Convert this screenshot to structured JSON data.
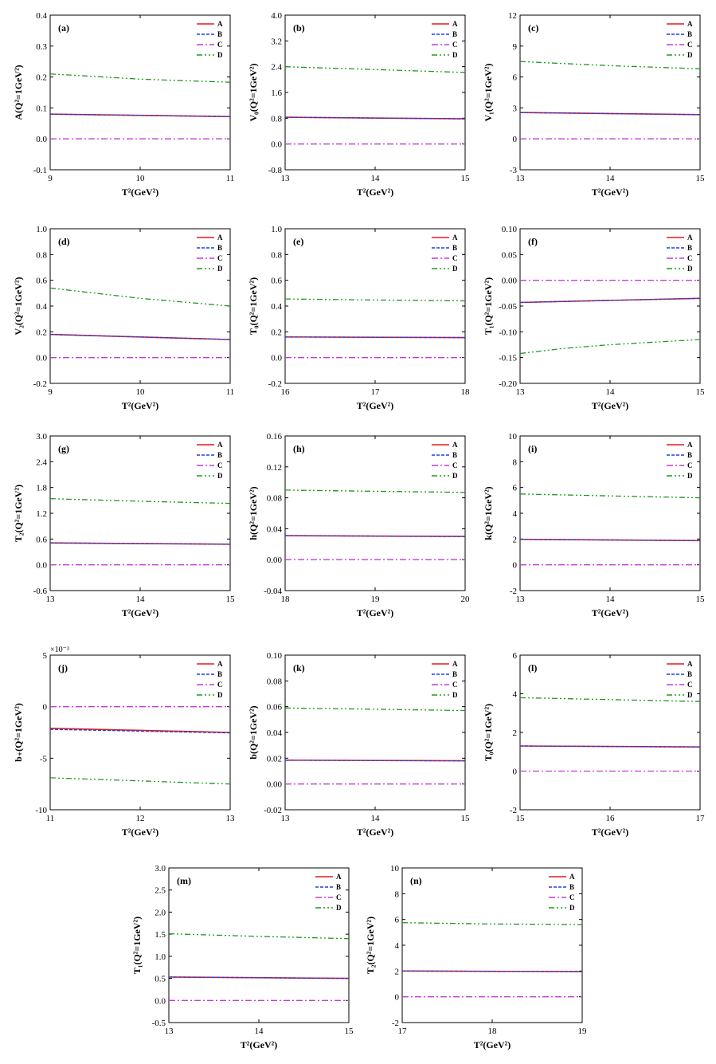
{
  "chart_data": [
    {
      "type": "line",
      "label": "(a)",
      "ylabel": "A(Q²=1GeV²)",
      "xlabel": "T²(GeV²)",
      "xlim": [
        9,
        11
      ],
      "ylim": [
        -0.1,
        0.4
      ],
      "xticks": [
        9,
        10,
        11
      ],
      "yticks": [
        "-0.1",
        "0.0",
        "0.1",
        "0.2",
        "0.3",
        "0.4"
      ],
      "yvals": [
        -0.1,
        0,
        0.1,
        0.2,
        0.3,
        0.4
      ],
      "series": [
        {
          "name": "A",
          "x": [
            9,
            11
          ],
          "y": [
            0.08,
            0.072
          ]
        },
        {
          "name": "B",
          "x": [
            9,
            11
          ],
          "y": [
            0.08,
            0.072
          ]
        },
        {
          "name": "C",
          "x": [
            9,
            11
          ],
          "y": [
            0,
            0
          ]
        },
        {
          "name": "D",
          "x": [
            9,
            10,
            11
          ],
          "y": [
            0.21,
            0.193,
            0.183
          ]
        }
      ]
    },
    {
      "type": "line",
      "label": "(b)",
      "ylabel": "V₀(Q²=1GeV²)",
      "xlabel": "T²(GeV²)",
      "xlim": [
        13,
        15
      ],
      "ylim": [
        -0.8,
        4.0
      ],
      "xticks": [
        13,
        14,
        15
      ],
      "yticks": [
        "-0.8",
        "0.0",
        "0.8",
        "1.6",
        "2.4",
        "3.2",
        "4.0"
      ],
      "yvals": [
        -0.8,
        0,
        0.8,
        1.6,
        2.4,
        3.2,
        4.0
      ],
      "series": [
        {
          "name": "A",
          "x": [
            13,
            15
          ],
          "y": [
            0.83,
            0.78
          ]
        },
        {
          "name": "B",
          "x": [
            13,
            15
          ],
          "y": [
            0.83,
            0.78
          ]
        },
        {
          "name": "C",
          "x": [
            13,
            15
          ],
          "y": [
            0,
            0
          ]
        },
        {
          "name": "D",
          "x": [
            13,
            14,
            15
          ],
          "y": [
            2.4,
            2.31,
            2.22
          ]
        }
      ]
    },
    {
      "type": "line",
      "label": "(c)",
      "ylabel": "V₁(Q²=1GeV²)",
      "xlabel": "T²(GeV²)",
      "xlim": [
        13,
        15
      ],
      "ylim": [
        -3,
        12
      ],
      "xticks": [
        13,
        14,
        15
      ],
      "yticks": [
        "-3",
        "0",
        "3",
        "6",
        "9",
        "12"
      ],
      "yvals": [
        -3,
        0,
        3,
        6,
        9,
        12
      ],
      "series": [
        {
          "name": "A",
          "x": [
            13,
            15
          ],
          "y": [
            2.55,
            2.35
          ]
        },
        {
          "name": "B",
          "x": [
            13,
            15
          ],
          "y": [
            2.55,
            2.35
          ]
        },
        {
          "name": "C",
          "x": [
            13,
            15
          ],
          "y": [
            0,
            0
          ]
        },
        {
          "name": "D",
          "x": [
            13,
            14,
            15
          ],
          "y": [
            7.5,
            7.1,
            6.8
          ]
        }
      ]
    },
    {
      "type": "line",
      "label": "(d)",
      "ylabel": "V₂(Q²=1GeV²)",
      "xlabel": "T²(GeV²)",
      "xlim": [
        9,
        11
      ],
      "ylim": [
        -0.2,
        1.0
      ],
      "xticks": [
        9,
        10,
        11
      ],
      "yticks": [
        "-0.2",
        "0.0",
        "0.2",
        "0.4",
        "0.6",
        "0.8",
        "1.0"
      ],
      "yvals": [
        -0.2,
        0,
        0.2,
        0.4,
        0.6,
        0.8,
        1.0
      ],
      "series": [
        {
          "name": "A",
          "x": [
            9,
            11
          ],
          "y": [
            0.18,
            0.14
          ]
        },
        {
          "name": "B",
          "x": [
            9,
            11
          ],
          "y": [
            0.18,
            0.14
          ]
        },
        {
          "name": "C",
          "x": [
            9,
            11
          ],
          "y": [
            0,
            0
          ]
        },
        {
          "name": "D",
          "x": [
            9,
            10,
            11
          ],
          "y": [
            0.54,
            0.46,
            0.4
          ]
        }
      ]
    },
    {
      "type": "line",
      "label": "(e)",
      "ylabel": "T₀(Q²=1GeV²)",
      "xlabel": "T²(GeV²)",
      "xlim": [
        16,
        18
      ],
      "ylim": [
        -0.2,
        1.0
      ],
      "xticks": [
        16,
        17,
        18
      ],
      "yticks": [
        "-0.2",
        "0.0",
        "0.2",
        "0.4",
        "0.6",
        "0.8",
        "1.0"
      ],
      "yvals": [
        -0.2,
        0,
        0.2,
        0.4,
        0.6,
        0.8,
        1.0
      ],
      "series": [
        {
          "name": "A",
          "x": [
            16,
            18
          ],
          "y": [
            0.16,
            0.155
          ]
        },
        {
          "name": "B",
          "x": [
            16,
            18
          ],
          "y": [
            0.16,
            0.155
          ]
        },
        {
          "name": "C",
          "x": [
            16,
            18
          ],
          "y": [
            0,
            0
          ]
        },
        {
          "name": "D",
          "x": [
            16,
            17,
            18
          ],
          "y": [
            0.455,
            0.447,
            0.44
          ]
        }
      ]
    },
    {
      "type": "line",
      "label": "(f)",
      "ylabel": "T₁(Q²=1GeV²)",
      "xlabel": "T²(GeV²)",
      "xlim": [
        13,
        15
      ],
      "ylim": [
        -0.2,
        0.1
      ],
      "xticks": [
        13,
        14,
        15
      ],
      "yticks": [
        "-0.20",
        "-0.15",
        "-0.10",
        "-0.05",
        "0.00",
        "0.05",
        "0.10"
      ],
      "yvals": [
        -0.2,
        -0.15,
        -0.1,
        -0.05,
        0,
        0.05,
        0.1
      ],
      "series": [
        {
          "name": "A",
          "x": [
            13,
            15
          ],
          "y": [
            -0.043,
            -0.035
          ]
        },
        {
          "name": "B",
          "x": [
            13,
            15
          ],
          "y": [
            -0.043,
            -0.035
          ]
        },
        {
          "name": "C",
          "x": [
            13,
            15
          ],
          "y": [
            0,
            0
          ]
        },
        {
          "name": "D",
          "x": [
            13,
            13.5,
            14,
            15
          ],
          "y": [
            -0.142,
            -0.132,
            -0.125,
            -0.115
          ]
        }
      ]
    },
    {
      "type": "line",
      "label": "(g)",
      "ylabel": "T₂(Q²=1GeV²)",
      "xlabel": "T²(GeV²)",
      "xlim": [
        13,
        15
      ],
      "ylim": [
        -0.6,
        3.0
      ],
      "xticks": [
        13,
        14,
        15
      ],
      "yticks": [
        "-0.6",
        "0.0",
        "0.6",
        "1.2",
        "1.8",
        "2.4",
        "3.0"
      ],
      "yvals": [
        -0.6,
        0,
        0.6,
        1.2,
        1.8,
        2.4,
        3.0
      ],
      "series": [
        {
          "name": "A",
          "x": [
            13,
            15
          ],
          "y": [
            0.51,
            0.48
          ]
        },
        {
          "name": "B",
          "x": [
            13,
            15
          ],
          "y": [
            0.51,
            0.48
          ]
        },
        {
          "name": "C",
          "x": [
            13,
            15
          ],
          "y": [
            0,
            0
          ]
        },
        {
          "name": "D",
          "x": [
            13,
            14,
            15
          ],
          "y": [
            1.54,
            1.48,
            1.43
          ]
        }
      ]
    },
    {
      "type": "line",
      "label": "(h)",
      "ylabel": "h(Q²=1GeV²)",
      "xlabel": "T²(GeV²)",
      "xlim": [
        18,
        20
      ],
      "ylim": [
        -0.04,
        0.16
      ],
      "xticks": [
        18,
        19,
        20
      ],
      "yticks": [
        "-0.04",
        "0.00",
        "0.04",
        "0.08",
        "0.12",
        "0.16"
      ],
      "yvals": [
        -0.04,
        0,
        0.04,
        0.08,
        0.12,
        0.16
      ],
      "series": [
        {
          "name": "A",
          "x": [
            18,
            20
          ],
          "y": [
            0.031,
            0.03
          ]
        },
        {
          "name": "B",
          "x": [
            18,
            20
          ],
          "y": [
            0.031,
            0.03
          ]
        },
        {
          "name": "C",
          "x": [
            18,
            20
          ],
          "y": [
            0,
            0
          ]
        },
        {
          "name": "D",
          "x": [
            18,
            19,
            20
          ],
          "y": [
            0.09,
            0.0885,
            0.087
          ]
        }
      ]
    },
    {
      "type": "line",
      "label": "(i)",
      "ylabel": "k(Q²=1GeV²)",
      "xlabel": "T²(GeV²)",
      "xlim": [
        13,
        15
      ],
      "ylim": [
        -2,
        10
      ],
      "xticks": [
        13,
        14,
        15
      ],
      "yticks": [
        "-2",
        "0",
        "2",
        "4",
        "6",
        "8",
        "10"
      ],
      "yvals": [
        -2,
        0,
        2,
        4,
        6,
        8,
        10
      ],
      "series": [
        {
          "name": "A",
          "x": [
            13,
            15
          ],
          "y": [
            1.98,
            1.88
          ]
        },
        {
          "name": "B",
          "x": [
            13,
            15
          ],
          "y": [
            1.98,
            1.88
          ]
        },
        {
          "name": "C",
          "x": [
            13,
            15
          ],
          "y": [
            0,
            0
          ]
        },
        {
          "name": "D",
          "x": [
            13,
            14,
            15
          ],
          "y": [
            5.5,
            5.35,
            5.2
          ]
        }
      ]
    },
    {
      "type": "line",
      "label": "(j)",
      "ylabel": "b₊(Q²=1GeV²)",
      "xlabel": "T²(GeV²)",
      "multiplier": "×10⁻³",
      "xlim": [
        11,
        13
      ],
      "ylim": [
        -10,
        5
      ],
      "xticks": [
        11,
        12,
        13
      ],
      "yticks": [
        "-10",
        "-5",
        "0",
        "5"
      ],
      "yvals": [
        -10,
        -5,
        0,
        5
      ],
      "series": [
        {
          "name": "A",
          "x": [
            11,
            13
          ],
          "y": [
            -2.1,
            -2.5
          ]
        },
        {
          "name": "B",
          "x": [
            11,
            13
          ],
          "y": [
            -2.2,
            -2.55
          ]
        },
        {
          "name": "C",
          "x": [
            11,
            13
          ],
          "y": [
            0,
            0
          ]
        },
        {
          "name": "D",
          "x": [
            11,
            12,
            13
          ],
          "y": [
            -6.9,
            -7.2,
            -7.5
          ]
        }
      ]
    },
    {
      "type": "line",
      "label": "(k)",
      "ylabel": "b(Q²=1GeV²)",
      "xlabel": "T²(GeV²)",
      "xlim": [
        13,
        15
      ],
      "ylim": [
        -0.02,
        0.1
      ],
      "xticks": [
        13,
        14,
        15
      ],
      "yticks": [
        "-0.02",
        "0.00",
        "0.02",
        "0.04",
        "0.06",
        "0.08",
        "0.10"
      ],
      "yvals": [
        -0.02,
        0,
        0.02,
        0.04,
        0.06,
        0.08,
        0.1
      ],
      "series": [
        {
          "name": "A",
          "x": [
            13,
            15
          ],
          "y": [
            0.0185,
            0.018
          ]
        },
        {
          "name": "B",
          "x": [
            13,
            15
          ],
          "y": [
            0.0185,
            0.018
          ]
        },
        {
          "name": "C",
          "x": [
            13,
            15
          ],
          "y": [
            0,
            0
          ]
        },
        {
          "name": "D",
          "x": [
            13,
            14,
            15
          ],
          "y": [
            0.059,
            0.058,
            0.057
          ]
        }
      ]
    },
    {
      "type": "line",
      "label": "(l)",
      "ylabel": "T₀(Q²=1GeV²)",
      "xlabel": "T²(GeV²)",
      "xlim": [
        15,
        17
      ],
      "ylim": [
        -2,
        6
      ],
      "xticks": [
        15,
        16,
        17
      ],
      "yticks": [
        "-2",
        "0",
        "2",
        "4",
        "6"
      ],
      "yvals": [
        -2,
        0,
        2,
        4,
        6
      ],
      "series": [
        {
          "name": "A",
          "x": [
            15,
            17
          ],
          "y": [
            1.3,
            1.25
          ]
        },
        {
          "name": "B",
          "x": [
            15,
            17
          ],
          "y": [
            1.3,
            1.25
          ]
        },
        {
          "name": "C",
          "x": [
            15,
            17
          ],
          "y": [
            0,
            0
          ]
        },
        {
          "name": "D",
          "x": [
            15,
            16,
            17
          ],
          "y": [
            3.8,
            3.7,
            3.6
          ]
        }
      ]
    },
    {
      "type": "line",
      "label": "(m)",
      "ylabel": "T₁(Q²=1GeV²)",
      "xlabel": "T²(GeV²)",
      "xlim": [
        13,
        15
      ],
      "ylim": [
        -0.5,
        3.0
      ],
      "xticks": [
        13,
        14,
        15
      ],
      "yticks": [
        "-0.5",
        "0.0",
        "0.5",
        "1.0",
        "1.5",
        "2.0",
        "2.5",
        "3.0"
      ],
      "yvals": [
        -0.5,
        0,
        0.5,
        1.0,
        1.5,
        2.0,
        2.5,
        3.0
      ],
      "series": [
        {
          "name": "A",
          "x": [
            13,
            15
          ],
          "y": [
            0.53,
            0.5
          ]
        },
        {
          "name": "B",
          "x": [
            13,
            15
          ],
          "y": [
            0.53,
            0.5
          ]
        },
        {
          "name": "C",
          "x": [
            13,
            15
          ],
          "y": [
            0,
            0
          ]
        },
        {
          "name": "D",
          "x": [
            13,
            14,
            15
          ],
          "y": [
            1.51,
            1.45,
            1.4
          ]
        }
      ]
    },
    {
      "type": "line",
      "label": "(n)",
      "ylabel": "T₂(Q²=1GeV²)",
      "xlabel": "T²(GeV²)",
      "xlim": [
        17,
        19
      ],
      "ylim": [
        -2,
        10
      ],
      "xticks": [
        17,
        18,
        19
      ],
      "yticks": [
        "-2",
        "0",
        "2",
        "4",
        "6",
        "8",
        "10"
      ],
      "yvals": [
        -2,
        0,
        2,
        4,
        6,
        8,
        10
      ],
      "series": [
        {
          "name": "A",
          "x": [
            17,
            19
          ],
          "y": [
            2.0,
            1.95
          ]
        },
        {
          "name": "B",
          "x": [
            17,
            19
          ],
          "y": [
            2.0,
            1.95
          ]
        },
        {
          "name": "C",
          "x": [
            17,
            19
          ],
          "y": [
            0,
            0
          ]
        },
        {
          "name": "D",
          "x": [
            17,
            18,
            19
          ],
          "y": [
            5.75,
            5.65,
            5.6
          ]
        }
      ]
    }
  ],
  "legend": [
    "A",
    "B",
    "C",
    "D"
  ],
  "colors": {
    "A": "#e8191c",
    "B": "#1f3fe0",
    "C": "#c43bd9",
    "D": "#1f9a1f"
  }
}
